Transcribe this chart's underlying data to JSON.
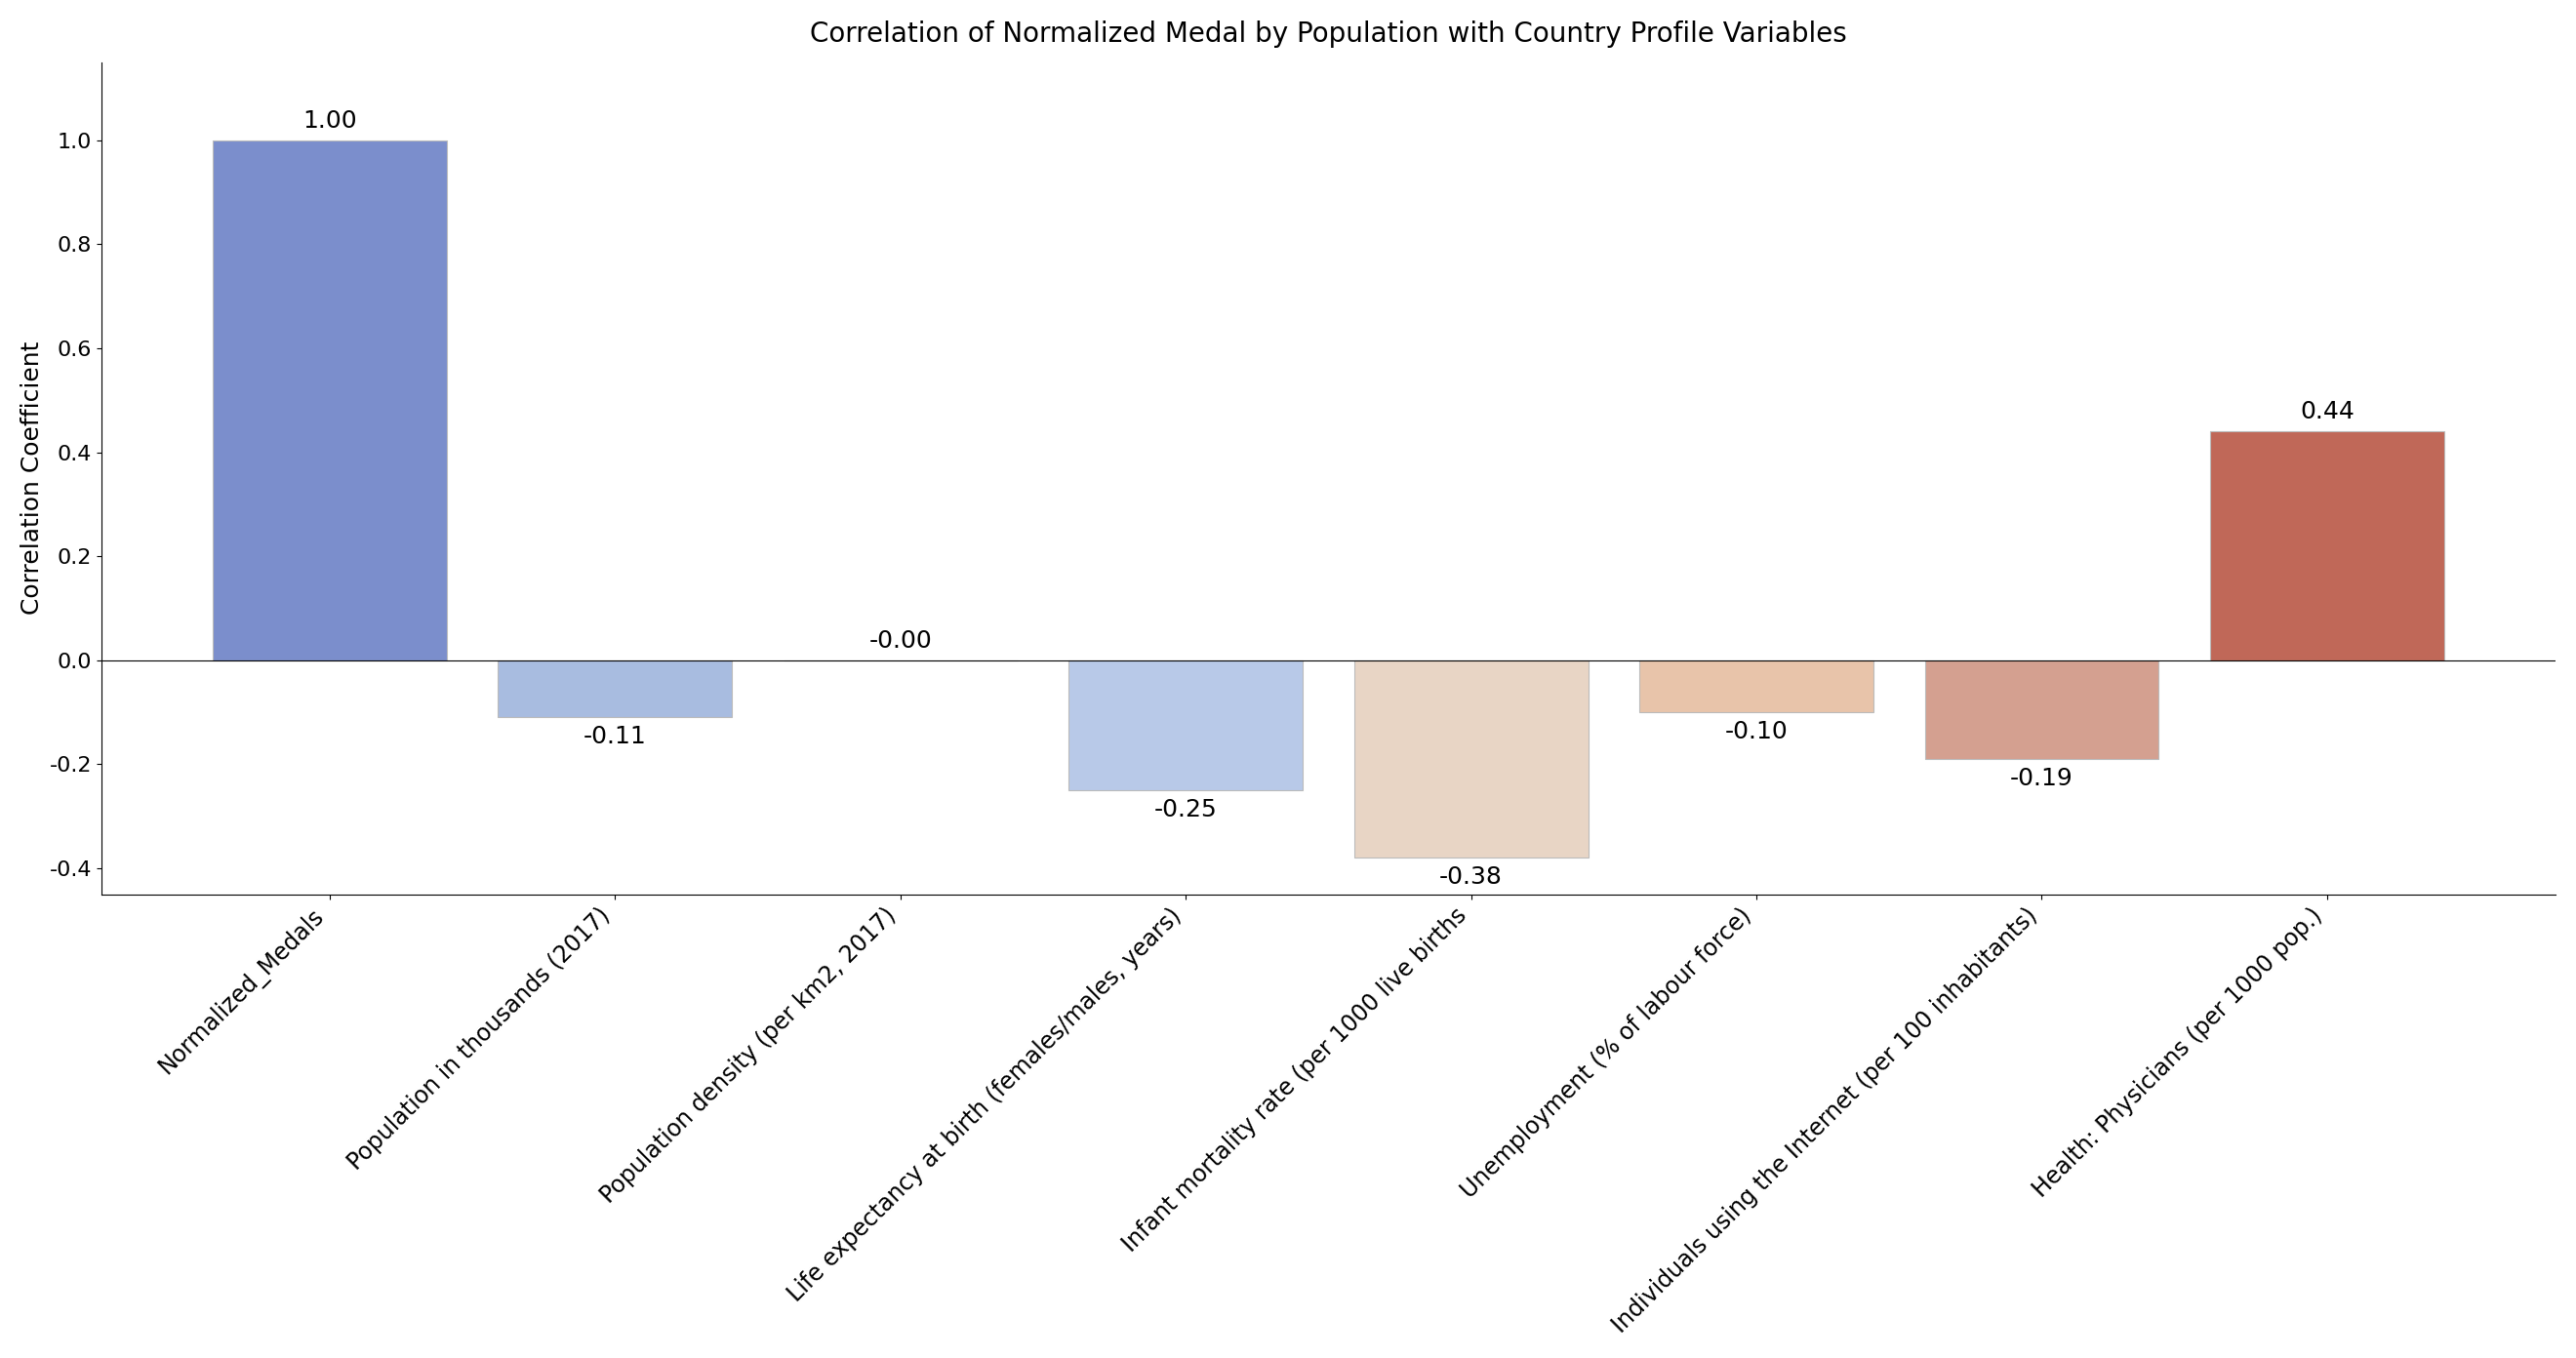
{
  "title": "Correlation of Normalized Medal by Population with Country Profile Variables",
  "ylabel": "Correlation Coefficient",
  "categories": [
    "Normalized_Medals",
    "Population in thousands (2017)",
    "Population density (per km2, 2017)",
    "Life expectancy at birth (females/males, years)",
    "Infant mortality rate (per 1000 live births",
    "Unemployment (% of labour force)",
    "Individuals using the Internet (per 100 inhabitants)",
    "Health: Physicians (per 1000 pop.)"
  ],
  "values": [
    1.0,
    -0.11,
    -0.0,
    -0.25,
    -0.38,
    -0.1,
    -0.19,
    0.44
  ],
  "bar_colors": [
    "#7b8ecc",
    "#a8bce0",
    "#c5d3ea",
    "#b8c9e8",
    "#e8d5c5",
    "#e8c4aa",
    "#d4a090",
    "#c06858"
  ],
  "ylim": [
    -0.45,
    1.15
  ],
  "yticks": [
    -0.4,
    -0.2,
    0.0,
    0.2,
    0.4,
    0.6,
    0.8,
    1.0
  ],
  "title_fontsize": 20,
  "label_fontsize": 18,
  "tick_fontsize": 16,
  "bar_label_fontsize": 18,
  "xtick_fontsize": 17,
  "background_color": "#ffffff",
  "edgecolor": "#bbbbbb",
  "bar_width": 0.82
}
